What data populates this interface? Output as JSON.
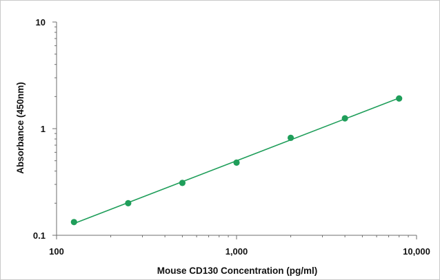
{
  "chart_data": {
    "type": "scatter",
    "title": "",
    "xlabel": "Mouse CD130 Concentration (pg/ml)",
    "ylabel": "Absorbance (450nm)",
    "xscale": "log",
    "yscale": "log",
    "xlim": [
      100,
      10000
    ],
    "ylim": [
      0.1,
      10
    ],
    "x_ticks": [
      100,
      1000,
      10000
    ],
    "x_tick_labels": [
      "100",
      "1,000",
      "10,000"
    ],
    "y_ticks": [
      0.1,
      1,
      10
    ],
    "y_tick_labels": [
      "0.1",
      "1",
      "10"
    ],
    "grid": false,
    "legend": "none",
    "color": "#1f9e5a",
    "points": {
      "x": [
        125,
        250,
        500,
        1000,
        2000,
        4000,
        8000
      ],
      "y": [
        0.133,
        0.2,
        0.31,
        0.48,
        0.82,
        1.25,
        1.92
      ]
    },
    "fit_line": "power-law"
  }
}
